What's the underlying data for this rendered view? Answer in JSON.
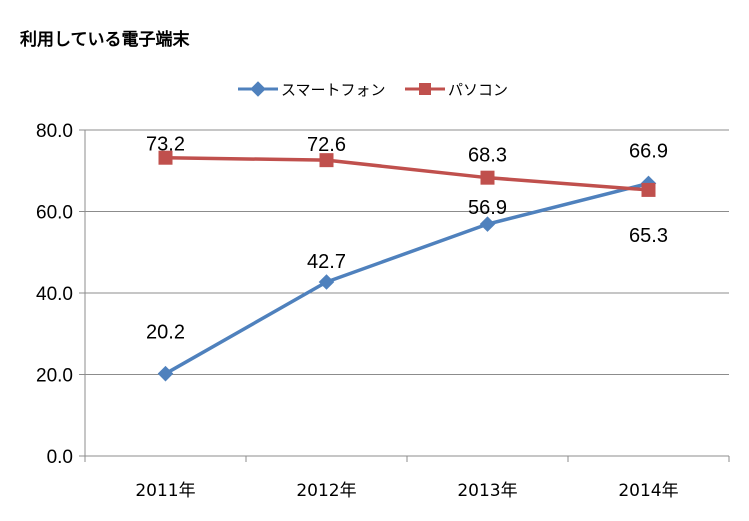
{
  "chart_data": {
    "type": "line",
    "title": "利用している電子端末",
    "categories": [
      "2011年",
      "2012年",
      "2013年",
      "2014年"
    ],
    "ylim": [
      0,
      80
    ],
    "yticks": [
      "0.0",
      "20.0",
      "40.0",
      "60.0",
      "80.0"
    ],
    "grid": true,
    "legend_position": "top",
    "series": [
      {
        "name": "スマートフォン",
        "color": "#4F81BD",
        "marker": "diamond",
        "values": [
          20.2,
          42.7,
          56.9,
          66.9
        ],
        "labels": [
          "20.2",
          "42.7",
          "56.9",
          "66.9"
        ]
      },
      {
        "name": "パソコン",
        "color": "#C0504D",
        "marker": "square",
        "values": [
          73.2,
          72.6,
          68.3,
          65.3
        ],
        "labels": [
          "73.2",
          "72.6",
          "68.3",
          "65.3"
        ]
      }
    ],
    "xlabel": "",
    "ylabel": ""
  }
}
